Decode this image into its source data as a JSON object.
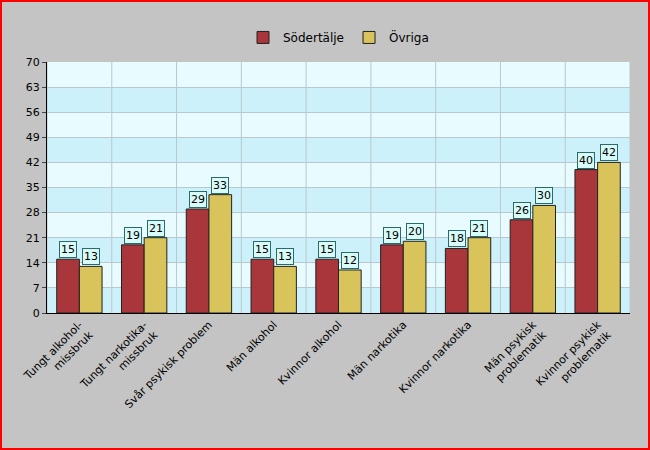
{
  "chart_data": {
    "type": "bar",
    "categories": [
      "Tungt alkohol-\nmissbruk",
      "Tungt narkotika-\nmissbruk",
      "Svår psykisk problem",
      "Män alkohol",
      "Kvinnor alkohol",
      "Män narkotika",
      "Kvinnor narkotika",
      "Män psykisk\nproblematik",
      "Kvinnor psykisk\nproblematik"
    ],
    "series": [
      {
        "name": "Södertälje",
        "color": "#a8363a",
        "values": [
          15,
          19,
          29,
          15,
          15,
          19,
          18,
          26,
          40
        ]
      },
      {
        "name": "Övriga",
        "color": "#d8c45a",
        "values": [
          13,
          21,
          33,
          13,
          12,
          20,
          21,
          30,
          42
        ]
      }
    ],
    "ylim": [
      0,
      70
    ],
    "yticks": [
      0,
      7,
      14,
      21,
      28,
      35,
      42,
      49,
      56,
      63,
      70
    ],
    "grid": true,
    "data_labels": true,
    "legend": "top"
  }
}
